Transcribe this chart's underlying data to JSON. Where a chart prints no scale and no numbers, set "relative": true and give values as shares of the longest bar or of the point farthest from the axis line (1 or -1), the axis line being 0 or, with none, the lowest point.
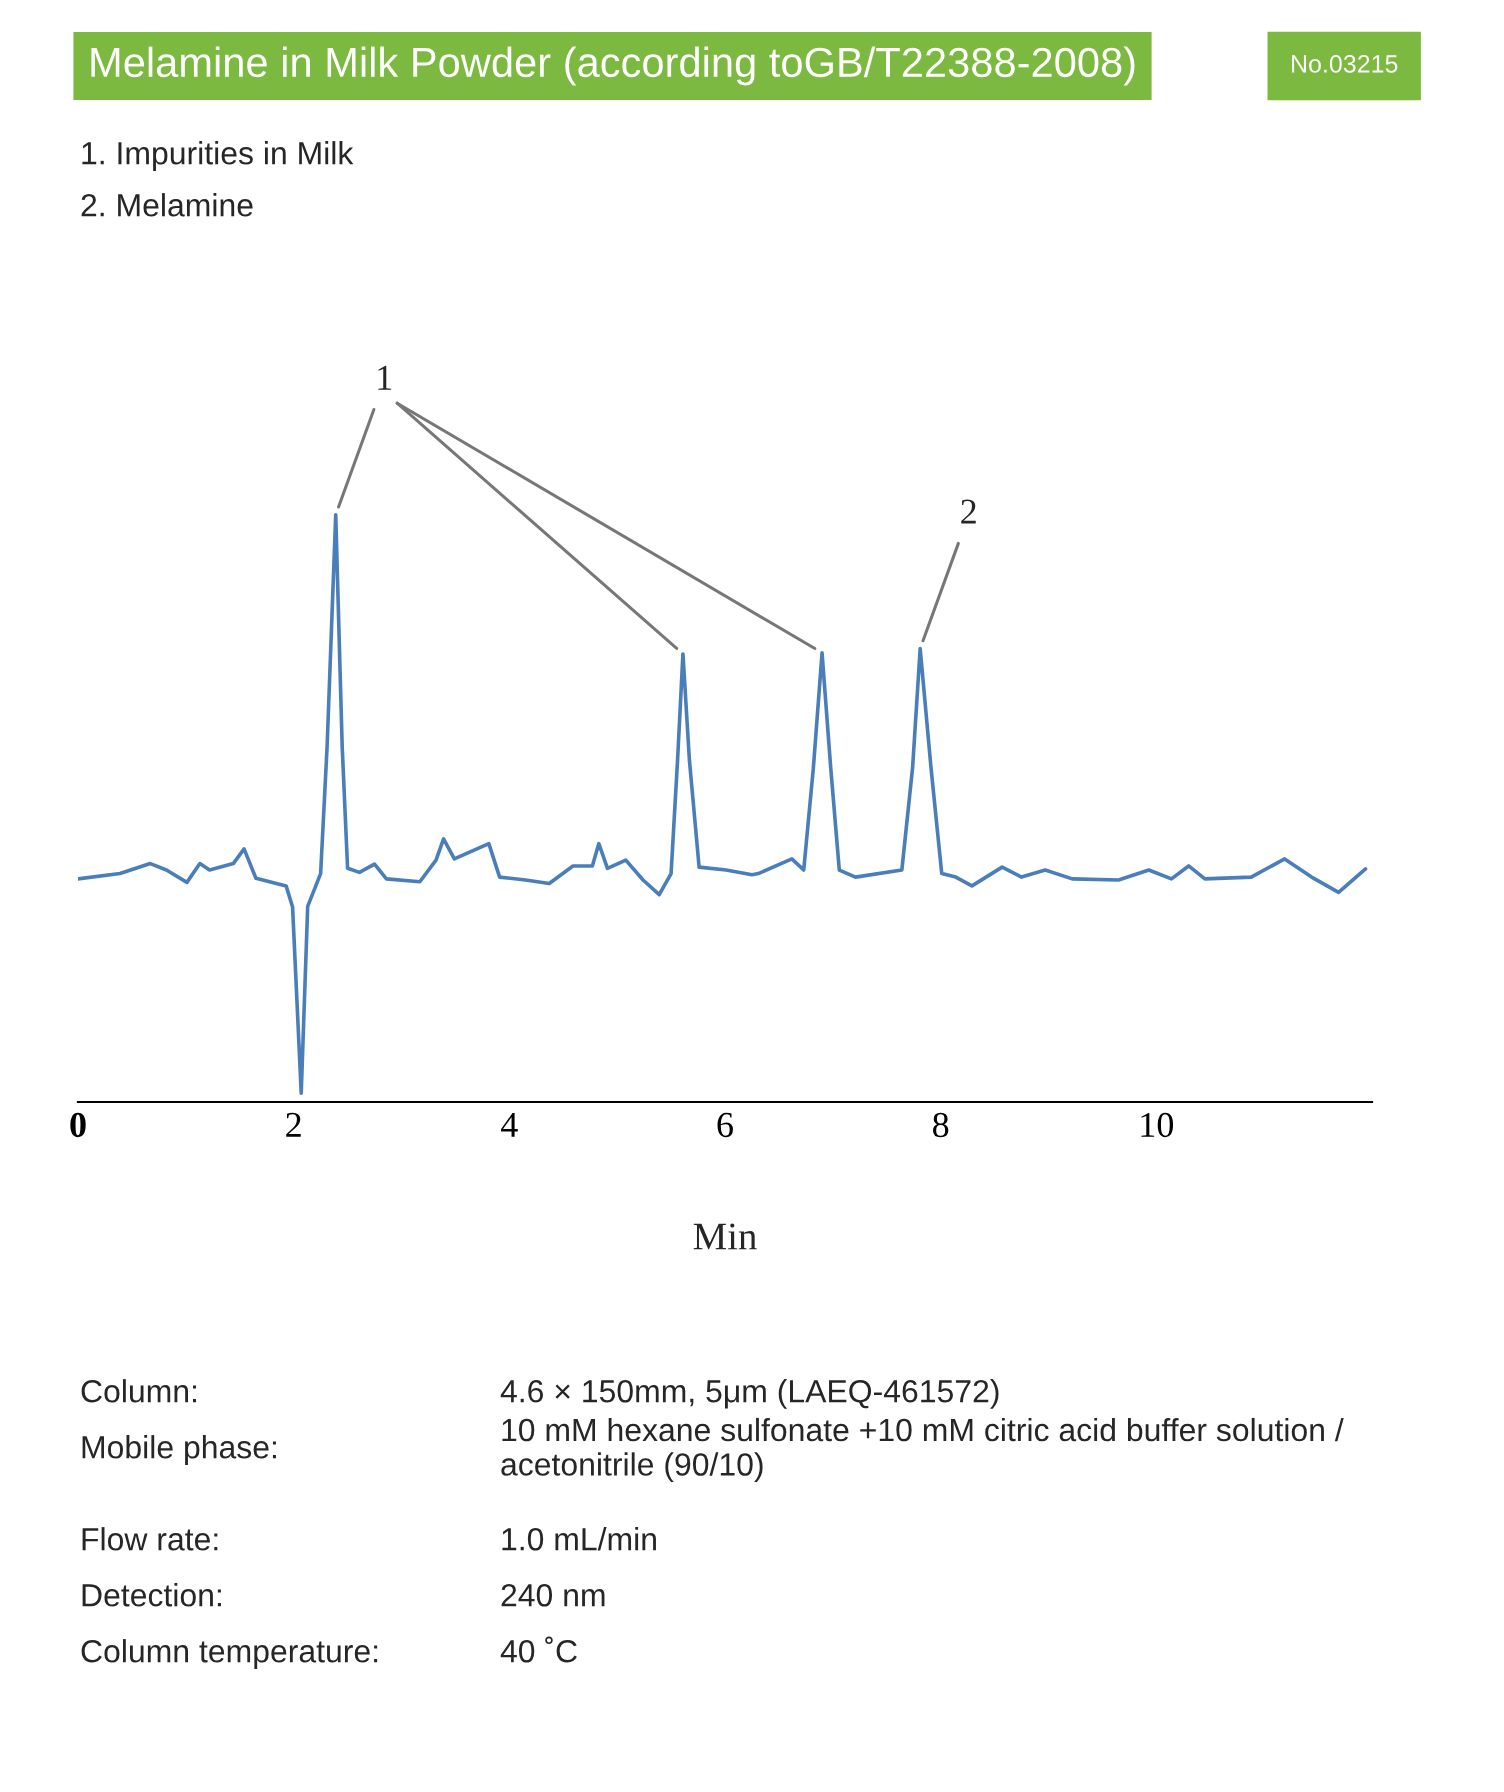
{
  "chart_data": {
    "type": "line",
    "relative": true,
    "title": "Melamine in Milk Powder (according toGB/T22388-2008)",
    "subtitle": "No.03215",
    "xlabel": "Min",
    "xlim": [
      0,
      12
    ],
    "xticks": [
      {
        "value": 0,
        "label": "0"
      },
      2,
      4,
      6,
      8,
      10
    ],
    "grid": false,
    "legend": false,
    "marker": "none",
    "line_style": "solid",
    "x": [
      0,
      0.39,
      0.67,
      0.82,
      1.01,
      1.13,
      1.22,
      1.44,
      1.54,
      1.65,
      1.93,
      1.99,
      2.07,
      2.13,
      2.25,
      2.31,
      2.39,
      2.45,
      2.5,
      2.61,
      2.75,
      2.86,
      3.17,
      3.32,
      3.39,
      3.49,
      3.81,
      3.91,
      4.15,
      4.37,
      4.59,
      4.77,
      4.83,
      4.91,
      5.08,
      5.24,
      5.39,
      5.5,
      5.56,
      5.61,
      5.67,
      5.76,
      6.01,
      6.25,
      6.31,
      6.62,
      6.73,
      6.82,
      6.9,
      6.98,
      7.06,
      7.21,
      7.64,
      7.74,
      7.81,
      7.91,
      8.01,
      8.14,
      8.29,
      8.57,
      8.75,
      8.97,
      9.22,
      9.65,
      9.93,
      10.14,
      10.3,
      10.45,
      10.88,
      11.19,
      11.44,
      11.69,
      11.94
    ],
    "series": [
      {
        "color": "#4a7ebb",
        "values": [
          0.38,
          0.389,
          0.406,
          0.395,
          0.374,
          0.406,
          0.395,
          0.406,
          0.431,
          0.381,
          0.368,
          0.332,
          0.015,
          0.333,
          0.389,
          0.605,
          1.0,
          0.605,
          0.398,
          0.391,
          0.405,
          0.38,
          0.375,
          0.412,
          0.448,
          0.414,
          0.44,
          0.383,
          0.378,
          0.372,
          0.402,
          0.402,
          0.44,
          0.398,
          0.412,
          0.378,
          0.353,
          0.389,
          0.582,
          0.763,
          0.582,
          0.4,
          0.395,
          0.387,
          0.389,
          0.414,
          0.395,
          0.57,
          0.765,
          0.57,
          0.395,
          0.383,
          0.395,
          0.57,
          0.772,
          0.57,
          0.389,
          0.383,
          0.368,
          0.4,
          0.383,
          0.395,
          0.38,
          0.378,
          0.395,
          0.38,
          0.402,
          0.38,
          0.383,
          0.414,
          0.383,
          0.357,
          0.397
        ]
      }
    ],
    "annotations": [
      "1. Impurities in Milk",
      "2. Melamine",
      {
        "text": "1",
        "x": 2.39,
        "y": 1.0
      },
      {
        "text": "2",
        "x": 7.81,
        "y": 0.772
      },
      "Column:",
      "4.6 × 150mm, 5μm (LAEQ-461572)",
      "Mobile phase:",
      "10 mM hexane sulfonate +10 mM citric acid buffer solution / acetonitrile (90/10)",
      "Flow rate:",
      "1.0 mL/min",
      "Detection:",
      "240 nm",
      "Column temperature:",
      "40 ˚C"
    ]
  }
}
